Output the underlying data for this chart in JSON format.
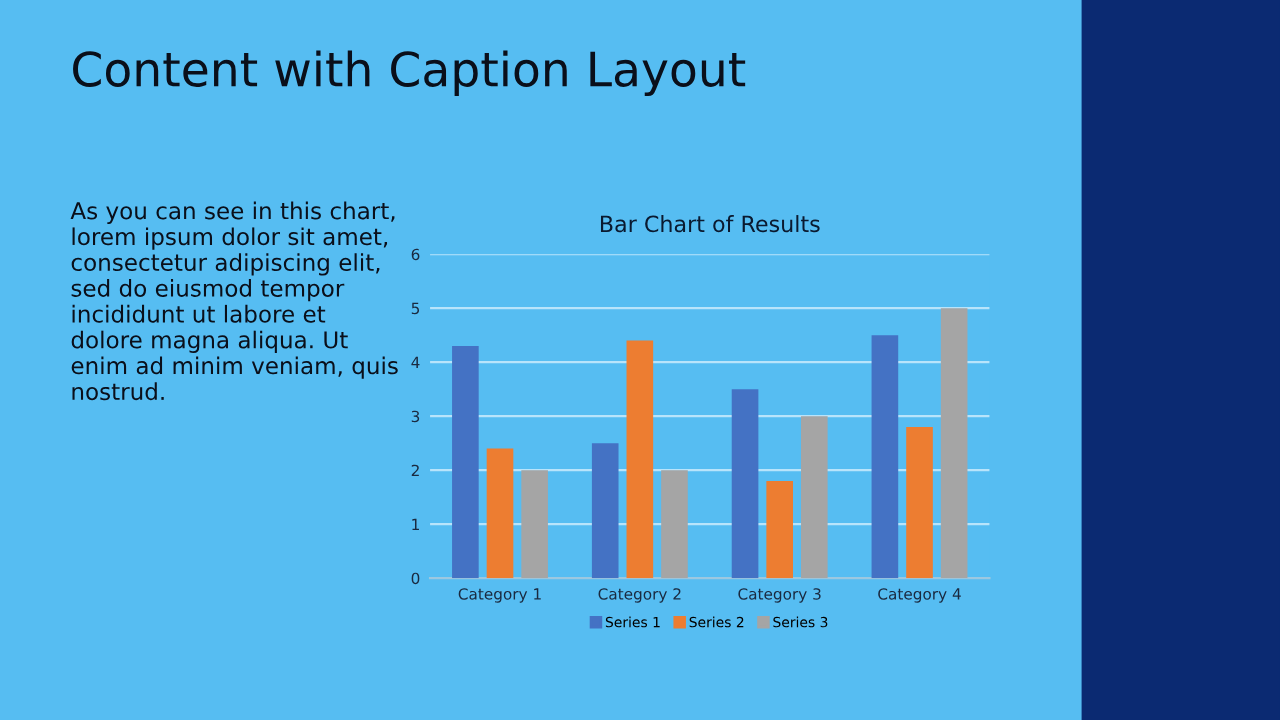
{
  "chart_data": {
    "type": "bar",
    "title": "Bar Chart of Results",
    "categories": [
      "Category 1",
      "Category 2",
      "Category 3",
      "Category 4"
    ],
    "series": [
      {
        "name": "Series 1",
        "color": "#4472c4",
        "values": [
          4.3,
          2.5,
          3.5,
          4.5
        ]
      },
      {
        "name": "Series 2",
        "color": "#ed7d31",
        "values": [
          2.4,
          4.4,
          1.8,
          2.8
        ]
      },
      {
        "name": "Series 3",
        "color": "#a5a5a5",
        "values": [
          2,
          2,
          3,
          5
        ]
      }
    ],
    "ylim": [
      0,
      6
    ],
    "yticks": [
      0,
      1,
      2,
      3,
      4,
      5,
      6
    ],
    "grid": "y",
    "legend": "bottom",
    "annotations": [
      "Content with Caption Layout",
      "As you can see in this chart,\nlorem ipsum dolor sit amet,\nconsectetur adipiscing elit,\nsed do eiusmod tempor\nincididunt ut labore et\ndolore magna aliqua. Ut\nenim ad minim veniam, quis\nnostrud."
    ]
  }
}
